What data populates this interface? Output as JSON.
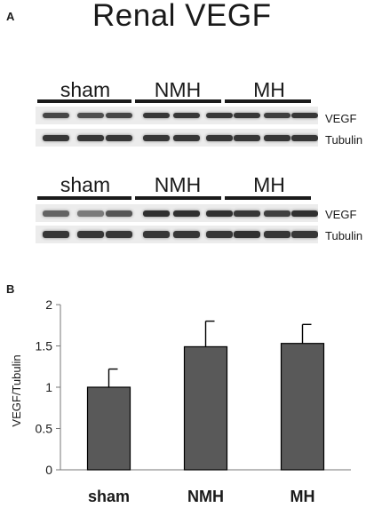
{
  "panel_a": {
    "label": "A",
    "title": "Renal VEGF",
    "blots": [
      {
        "groups": [
          "sham",
          "NMH",
          "MH"
        ],
        "rows": [
          "VEGF",
          "Tubulin"
        ]
      },
      {
        "groups": [
          "sham",
          "NMH",
          "MH"
        ],
        "rows": [
          "VEGF",
          "Tubulin"
        ]
      }
    ]
  },
  "panel_b": {
    "label": "B"
  },
  "chart_data": {
    "type": "bar",
    "categories": [
      "sham",
      "NMH",
      "MH"
    ],
    "values": [
      1.0,
      1.49,
      1.53
    ],
    "errors": [
      0.22,
      0.31,
      0.23
    ],
    "title": "",
    "xlabel": "",
    "ylabel": "VEGF/Tubulin",
    "ylim": [
      0,
      2
    ],
    "yticks": [
      0,
      0.5,
      1,
      1.5,
      2
    ],
    "grid": false,
    "bar_color": "#595959"
  }
}
